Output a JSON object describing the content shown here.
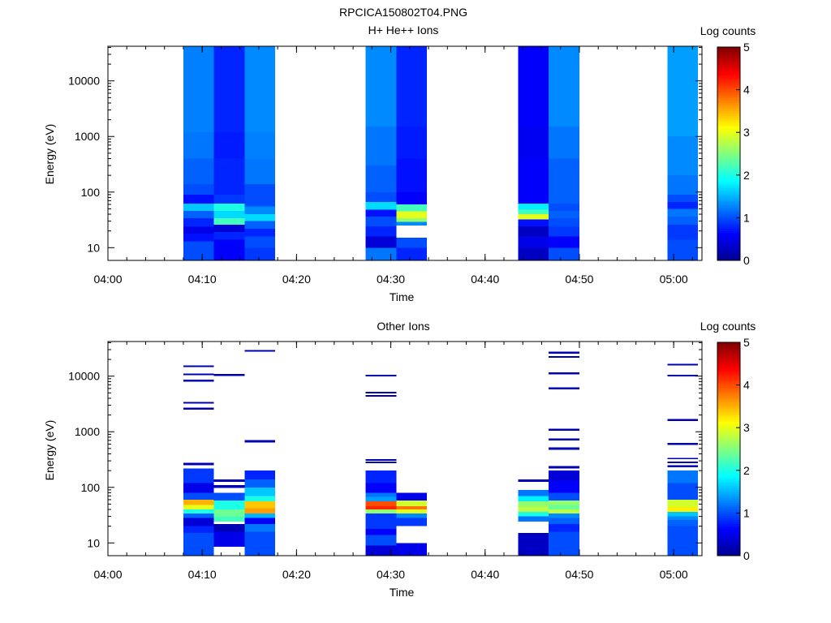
{
  "figure": {
    "title": "RPCICA150802T04.PNG"
  },
  "colors": {
    "colormap": [
      "#00008f",
      "#0000ff",
      "#0080ff",
      "#00ffff",
      "#80ff80",
      "#ffff00",
      "#ff8000",
      "#ff0000",
      "#800000"
    ]
  },
  "chart_data": [
    {
      "type": "heatmap",
      "title": "H+ He++ Ions",
      "xlabel": "Time",
      "ylabel": "Energy (eV)",
      "xscale": "time",
      "yscale": "log",
      "xlim": [
        "04:00",
        "05:03"
      ],
      "ylim": [
        5.9,
        42000
      ],
      "xticks": [
        "04:00",
        "04:10",
        "04:20",
        "04:30",
        "04:40",
        "04:50",
        "05:00"
      ],
      "yticks": [
        "10",
        "100",
        "1000",
        "10000"
      ],
      "colorbar": {
        "label": "Log counts",
        "range": [
          0,
          5
        ],
        "ticks": [
          "0",
          "1",
          "2",
          "3",
          "4",
          "5"
        ]
      },
      "columns": [
        {
          "start": "04:08:00",
          "end": "04:11:15",
          "levels": [
            [
              5.9,
              8,
              1.0
            ],
            [
              8,
              13,
              1.0
            ],
            [
              13,
              18,
              0.7
            ],
            [
              18,
              24,
              0.5
            ],
            [
              24,
              34,
              0.8
            ],
            [
              34,
              46,
              1.1
            ],
            [
              46,
              62,
              1.6
            ],
            [
              62,
              90,
              0.7
            ],
            [
              90,
              140,
              1.0
            ],
            [
              140,
              400,
              1.1
            ],
            [
              400,
              1200,
              1.2
            ],
            [
              1200,
              42000,
              1.25
            ]
          ]
        },
        {
          "start": "04:11:15",
          "end": "04:14:30",
          "levels": [
            [
              5.9,
              8,
              0.6
            ],
            [
              8,
              14,
              0.6
            ],
            [
              14,
              19,
              0.8
            ],
            [
              19,
              26,
              0.4
            ],
            [
              26,
              34,
              2.2
            ],
            [
              34,
              46,
              1.7
            ],
            [
              46,
              62,
              2.0
            ],
            [
              62,
              90,
              0.9
            ],
            [
              90,
              140,
              0.8
            ],
            [
              140,
              400,
              0.8
            ],
            [
              400,
              1200,
              0.75
            ],
            [
              1200,
              42000,
              0.8
            ]
          ]
        },
        {
          "start": "04:14:30",
          "end": "04:17:45",
          "levels": [
            [
              5.9,
              10,
              0.9
            ],
            [
              10,
              16,
              1.0
            ],
            [
              16,
              22,
              0.8
            ],
            [
              22,
              30,
              1.1
            ],
            [
              30,
              40,
              1.7
            ],
            [
              40,
              55,
              1.3
            ],
            [
              55,
              80,
              1.0
            ],
            [
              80,
              140,
              1.0
            ],
            [
              140,
              400,
              1.2
            ],
            [
              400,
              1200,
              1.25
            ],
            [
              1200,
              42000,
              1.3
            ]
          ]
        },
        {
          "start": "04:27:20",
          "end": "04:30:35",
          "levels": [
            [
              5.9,
              10,
              1.2
            ],
            [
              10,
              16,
              0.4
            ],
            [
              16,
              24,
              0.8
            ],
            [
              24,
              36,
              1.0
            ],
            [
              36,
              48,
              0.7
            ],
            [
              48,
              66,
              1.7
            ],
            [
              66,
              100,
              1.0
            ],
            [
              100,
              300,
              1.1
            ],
            [
              300,
              1500,
              1.2
            ],
            [
              1500,
              42000,
              1.3
            ]
          ]
        },
        {
          "start": "04:30:35",
          "end": "04:33:50",
          "levels": [
            [
              5.9,
              10,
              0.8
            ],
            [
              10,
              15,
              1.0
            ],
            [
              25,
              29,
              1.3
            ],
            [
              29,
              34,
              2.6
            ],
            [
              34,
              45,
              3.0
            ],
            [
              45,
              60,
              2.2
            ],
            [
              60,
              100,
              0.6
            ],
            [
              100,
              400,
              0.7
            ],
            [
              400,
              1500,
              0.75
            ],
            [
              1500,
              42000,
              0.8
            ]
          ]
        },
        {
          "start": "04:43:30",
          "end": "04:46:45",
          "levels": [
            [
              5.9,
              10,
              0.3
            ],
            [
              10,
              16,
              0.5
            ],
            [
              16,
              24,
              0.3
            ],
            [
              24,
              32,
              0.7
            ],
            [
              32,
              40,
              3.0
            ],
            [
              40,
              48,
              2.2
            ],
            [
              48,
              62,
              1.8
            ],
            [
              62,
              100,
              0.6
            ],
            [
              100,
              400,
              0.6
            ],
            [
              400,
              1500,
              0.55
            ],
            [
              1500,
              42000,
              0.6
            ]
          ]
        },
        {
          "start": "04:46:45",
          "end": "04:50:00",
          "levels": [
            [
              5.9,
              10,
              1.0
            ],
            [
              10,
              16,
              0.6
            ],
            [
              16,
              24,
              0.9
            ],
            [
              24,
              34,
              1.0
            ],
            [
              34,
              46,
              1.1
            ],
            [
              46,
              62,
              1.0
            ],
            [
              62,
              100,
              1.1
            ],
            [
              100,
              400,
              1.1
            ],
            [
              400,
              1500,
              1.2
            ],
            [
              1500,
              42000,
              1.3
            ]
          ]
        },
        {
          "start": "04:59:20",
          "end": "05:02:35",
          "levels": [
            [
              5.9,
              14,
              1.0
            ],
            [
              14,
              26,
              0.9
            ],
            [
              26,
              36,
              1.1
            ],
            [
              36,
              50,
              1.2
            ],
            [
              50,
              66,
              0.8
            ],
            [
              66,
              90,
              1.0
            ],
            [
              90,
              200,
              1.2
            ],
            [
              200,
              1000,
              1.3
            ],
            [
              1000,
              42000,
              1.4
            ]
          ]
        }
      ]
    },
    {
      "type": "heatmap",
      "title": "Other Ions",
      "xlabel": "Time",
      "ylabel": "Energy (eV)",
      "xscale": "time",
      "yscale": "log",
      "xlim": [
        "04:00",
        "05:03"
      ],
      "ylim": [
        5.9,
        42000
      ],
      "xticks": [
        "04:00",
        "04:10",
        "04:20",
        "04:30",
        "04:40",
        "04:50",
        "05:00"
      ],
      "yticks": [
        "10",
        "100",
        "1000",
        "10000"
      ],
      "colorbar": {
        "label": "Log counts",
        "range": [
          0,
          5
        ],
        "ticks": [
          "0",
          "1",
          "2",
          "3",
          "4",
          "5"
        ]
      },
      "columns": [
        {
          "start": "04:08:00",
          "end": "04:11:15",
          "levels": [
            [
              5.9,
              15,
              1.0
            ],
            [
              15,
              20,
              0.8
            ],
            [
              20,
              28,
              0.4
            ],
            [
              28,
              34,
              1.1
            ],
            [
              34,
              40,
              2.0
            ],
            [
              40,
              48,
              3.0
            ],
            [
              48,
              60,
              3.5
            ],
            [
              60,
              80,
              1.0
            ],
            [
              80,
              120,
              0.5
            ],
            [
              120,
              220,
              0.9
            ],
            [
              250,
              275,
              0.2
            ],
            [
              2500,
              2700,
              0.2
            ],
            [
              3200,
              3450,
              0.2
            ],
            [
              8000,
              8600,
              0.2
            ],
            [
              10500,
              11200,
              0.2
            ],
            [
              14500,
              15500,
              0.2
            ]
          ]
        },
        {
          "start": "04:11:15",
          "end": "04:14:30",
          "levels": [
            [
              8.6,
              12,
              0.5
            ],
            [
              12,
              16,
              0.5
            ],
            [
              16,
              22,
              0.2
            ],
            [
              24,
              30,
              2.2
            ],
            [
              30,
              40,
              2.4
            ],
            [
              40,
              58,
              2.0
            ],
            [
              58,
              80,
              1.0
            ],
            [
              98,
              110,
              0.2
            ],
            [
              125,
              140,
              0.2
            ],
            [
              10000,
              10900,
              0.2
            ]
          ]
        },
        {
          "start": "04:14:30",
          "end": "04:17:45",
          "levels": [
            [
              5.9,
              16,
              1.0
            ],
            [
              16,
              22,
              1.2
            ],
            [
              22,
              28,
              0.6
            ],
            [
              28,
              34,
              1.5
            ],
            [
              34,
              42,
              3.6
            ],
            [
              42,
              56,
              3.4
            ],
            [
              56,
              70,
              2.0
            ],
            [
              70,
              100,
              1.6
            ],
            [
              100,
              140,
              1.1
            ],
            [
              140,
              200,
              0.8
            ],
            [
              640,
              710,
              0.2
            ],
            [
              27500,
              29500,
              0.2
            ]
          ]
        },
        {
          "start": "04:27:20",
          "end": "04:30:35",
          "levels": [
            [
              5.9,
              9,
              0.4
            ],
            [
              9,
              14,
              1.0
            ],
            [
              14,
              18,
              0.6
            ],
            [
              18,
              26,
              0.9
            ],
            [
              26,
              34,
              0.9
            ],
            [
              34,
              40,
              2.6
            ],
            [
              40,
              46,
              4.2
            ],
            [
              46,
              56,
              4.0
            ],
            [
              56,
              68,
              1.4
            ],
            [
              68,
              80,
              1.2
            ],
            [
              80,
              120,
              0.6
            ],
            [
              120,
              200,
              0.8
            ],
            [
              270,
              290,
              0.2
            ],
            [
              300,
              320,
              0.2
            ],
            [
              4300,
              4600,
              0.2
            ],
            [
              4900,
              5200,
              0.2
            ],
            [
              9900,
              10600,
              0.2
            ]
          ]
        },
        {
          "start": "04:30:35",
          "end": "04:33:50",
          "levels": [
            [
              5.9,
              9,
              0.5
            ],
            [
              9,
              10,
              0.5
            ],
            [
              20,
              28,
              0.9
            ],
            [
              28,
              34,
              1.3
            ],
            [
              34,
              40,
              3.0
            ],
            [
              40,
              46,
              3.8
            ],
            [
              46,
              58,
              2.9
            ],
            [
              58,
              80,
              0.5
            ]
          ]
        },
        {
          "start": "04:43:30",
          "end": "04:46:45",
          "levels": [
            [
              5.9,
              15,
              0.3
            ],
            [
              24,
              30,
              1.2
            ],
            [
              30,
              36,
              2.0
            ],
            [
              36,
              44,
              2.8
            ],
            [
              44,
              56,
              2.6
            ],
            [
              56,
              70,
              1.8
            ],
            [
              70,
              90,
              1.2
            ],
            [
              125,
              140,
              0.2
            ]
          ]
        },
        {
          "start": "04:46:45",
          "end": "04:50:00",
          "levels": [
            [
              5.9,
              16,
              1.0
            ],
            [
              16,
              22,
              0.8
            ],
            [
              22,
              28,
              1.1
            ],
            [
              28,
              34,
              1.3
            ],
            [
              34,
              40,
              2.8
            ],
            [
              40,
              48,
              2.4
            ],
            [
              48,
              58,
              2.6
            ],
            [
              58,
              80,
              1.0
            ],
            [
              80,
              130,
              0.6
            ],
            [
              130,
              200,
              0.4
            ],
            [
              220,
              240,
              0.2
            ],
            [
              470,
              520,
              0.2
            ],
            [
              700,
              760,
              0.2
            ],
            [
              1050,
              1130,
              0.2
            ],
            [
              5800,
              6300,
              0.2
            ],
            [
              10800,
              11700,
              0.2
            ],
            [
              21500,
              23000,
              0.2
            ],
            [
              25500,
              27500,
              0.2
            ]
          ]
        },
        {
          "start": "04:59:20",
          "end": "05:02:35",
          "levels": [
            [
              5.9,
              20,
              1.0
            ],
            [
              20,
              26,
              1.1
            ],
            [
              26,
              30,
              1.3
            ],
            [
              30,
              36,
              1.6
            ],
            [
              36,
              44,
              3.2
            ],
            [
              44,
              60,
              2.9
            ],
            [
              60,
              80,
              1.0
            ],
            [
              80,
              120,
              1.0
            ],
            [
              120,
              200,
              1.2
            ],
            [
              230,
              250,
              0.2
            ],
            [
              270,
              290,
              0.2
            ],
            [
              320,
              340,
              0.2
            ],
            [
              580,
              630,
              0.2
            ],
            [
              1550,
              1700,
              0.2
            ],
            [
              9900,
              10600,
              0.2
            ],
            [
              15500,
              16800,
              0.2
            ]
          ]
        }
      ]
    }
  ]
}
